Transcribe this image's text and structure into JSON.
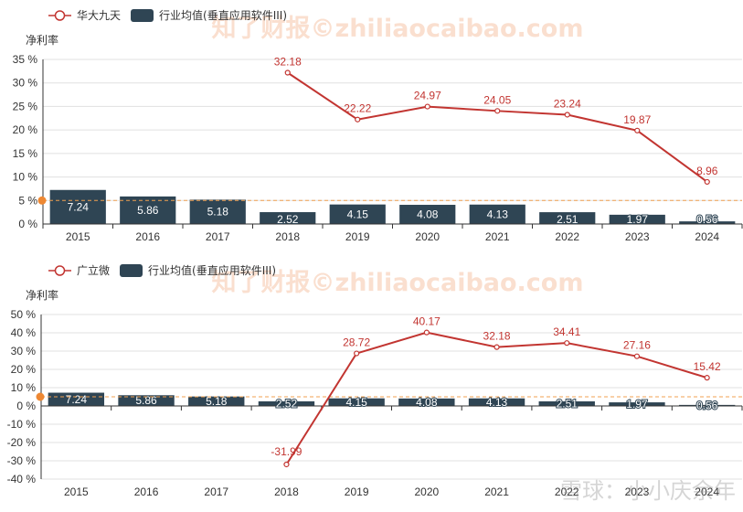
{
  "chart_data": [
    {
      "type": "bar",
      "ylabel": "净利率",
      "categories": [
        "2015",
        "2016",
        "2017",
        "2018",
        "2019",
        "2020",
        "2021",
        "2022",
        "2023",
        "2024"
      ],
      "ylim": [
        0,
        35
      ],
      "yticks": [
        "0 %",
        "5 %",
        "10 %",
        "15 %",
        "20 %",
        "25 %",
        "30 %",
        "35 %"
      ],
      "reference_line": 5,
      "grid": true,
      "legend_position": "top-left",
      "watermark": "知了财报©zhiliaocaibao.com",
      "series": [
        {
          "name": "华大九天",
          "kind": "line",
          "color": "#c23531",
          "values": [
            null,
            null,
            null,
            32.18,
            22.22,
            24.97,
            24.05,
            23.24,
            19.87,
            8.96
          ],
          "labels": [
            "",
            "",
            "",
            "32.18",
            "22.22",
            "24.97",
            "24.05",
            "23.24",
            "19.87",
            "8.96"
          ]
        },
        {
          "name": "行业均值(垂直应用软件III)",
          "kind": "bar",
          "color": "#2f4554",
          "values": [
            7.24,
            5.86,
            5.18,
            2.52,
            4.15,
            4.08,
            4.13,
            2.51,
            1.97,
            0.56
          ],
          "labels": [
            "7.24",
            "5.86",
            "5.18",
            "2.52",
            "4.15",
            "4.08",
            "4.13",
            "2.51",
            "1.97",
            "0.56"
          ]
        }
      ]
    },
    {
      "type": "bar",
      "ylabel": "净利率",
      "categories": [
        "2015",
        "2016",
        "2017",
        "2018",
        "2019",
        "2020",
        "2021",
        "2022",
        "2023",
        "2024"
      ],
      "ylim": [
        -40,
        50
      ],
      "yticks": [
        "-40 %",
        "-30 %",
        "-20 %",
        "-10 %",
        "0 %",
        "10 %",
        "20 %",
        "30 %",
        "40 %",
        "50 %"
      ],
      "reference_line": 5,
      "grid": true,
      "legend_position": "top-left",
      "watermark": "知了财报©zhiliaocaibao.com",
      "series": [
        {
          "name": "广立微",
          "kind": "line",
          "color": "#c23531",
          "values": [
            null,
            null,
            null,
            -31.99,
            28.72,
            40.17,
            32.18,
            34.41,
            27.16,
            15.42
          ],
          "labels": [
            "",
            "",
            "",
            "-31.99",
            "28.72",
            "40.17",
            "32.18",
            "34.41",
            "27.16",
            "15.42"
          ]
        },
        {
          "name": "行业均值(垂直应用软件III)",
          "kind": "bar",
          "color": "#2f4554",
          "values": [
            7.24,
            5.86,
            5.18,
            2.52,
            4.15,
            4.08,
            4.13,
            2.51,
            1.97,
            0.56
          ],
          "labels": [
            "7.24",
            "5.86",
            "5.18",
            "2.52",
            "4.15",
            "4.08",
            "4.13",
            "2.51",
            "1.97",
            "0.56"
          ]
        }
      ]
    }
  ],
  "footer_watermark": "雪球：小小庆余年"
}
